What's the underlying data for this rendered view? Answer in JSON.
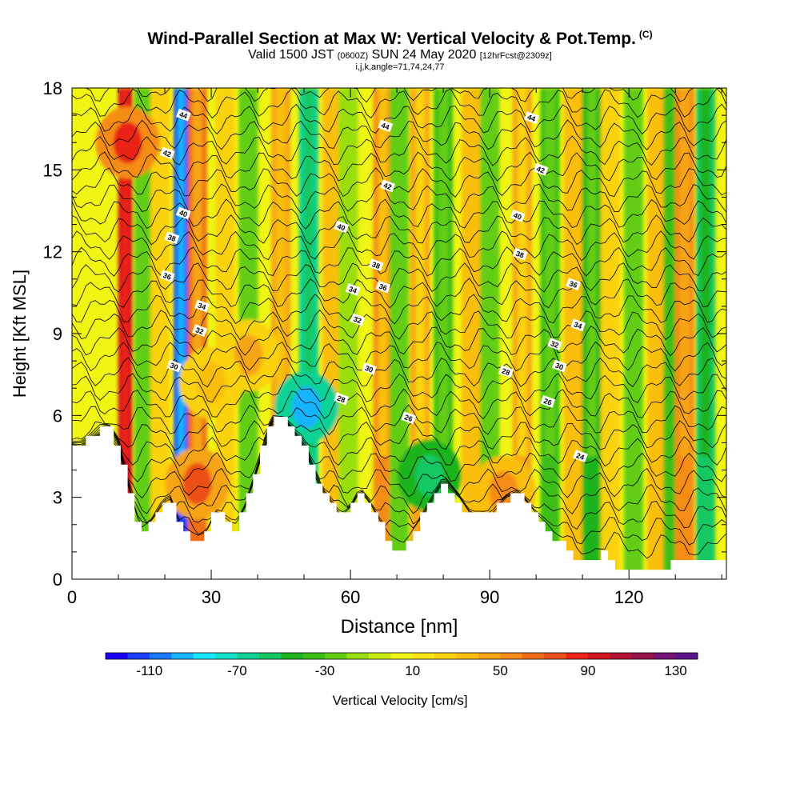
{
  "title": {
    "main": "Wind-Parallel Section at Max W: Vertical Velocity & Pot.Temp.",
    "corner": "(C)",
    "sub_prefix": "Valid 1500 JST",
    "sub_utc": "(0600Z)",
    "sub_date": "SUN 24 May 2020",
    "sub_fcst": "[12hrFcst@2309z]",
    "line3": "i,j,k,angle=71,74,24,77"
  },
  "chart_data": {
    "type": "heatmap",
    "xlabel": "Distance [nm]",
    "ylabel": "Height [Kft MSL]",
    "xlim": [
      0,
      141
    ],
    "ylim": [
      0,
      18
    ],
    "x_ticks": [
      0,
      30,
      60,
      90,
      120
    ],
    "y_ticks": [
      0,
      3,
      6,
      9,
      12,
      15,
      18
    ],
    "colorbar": {
      "label": "Vertical Velocity [cm/s]",
      "tick_labels": [
        "-110",
        "-70",
        "-30",
        "10",
        "50",
        "90",
        "130"
      ],
      "levels_start": -130,
      "level_step": 10,
      "colors": [
        "#1a00ff",
        "#1940ff",
        "#1a78ff",
        "#17b4ff",
        "#18e8ff",
        "#12e0c8",
        "#10d296",
        "#15c864",
        "#1eb41e",
        "#3cbe14",
        "#64cd14",
        "#9ade10",
        "#c8eb10",
        "#f0f514",
        "#fae614",
        "#fad20f",
        "#fabe0f",
        "#f5a514",
        "#f58c19",
        "#f06e19",
        "#eb5019",
        "#eb2319",
        "#d21423",
        "#b41432",
        "#96144b",
        "#781478",
        "#5a148c"
      ]
    },
    "w_columns": [
      {
        "x": 11.5,
        "w": 95
      },
      {
        "x": 15.5,
        "w": -30
      },
      {
        "x": 19,
        "w": 20
      },
      {
        "x": 23.5,
        "w": -115
      },
      {
        "x": 27,
        "w": 60
      },
      {
        "x": 33,
        "w": 20
      },
      {
        "x": 38,
        "w": -25
      },
      {
        "x": 45,
        "w": 45
      },
      {
        "x": 51,
        "w": -70
      },
      {
        "x": 56,
        "w": 30
      },
      {
        "x": 59.5,
        "w": -20
      },
      {
        "x": 67,
        "w": 50
      },
      {
        "x": 70.5,
        "w": -30
      },
      {
        "x": 75,
        "w": 40
      },
      {
        "x": 80,
        "w": -40
      },
      {
        "x": 86,
        "w": 35
      },
      {
        "x": 90,
        "w": -25
      },
      {
        "x": 97,
        "w": 40
      },
      {
        "x": 103,
        "w": -40
      },
      {
        "x": 108,
        "w": 30
      },
      {
        "x": 112,
        "w": -45
      },
      {
        "x": 116,
        "w": 25
      },
      {
        "x": 121,
        "w": -30
      },
      {
        "x": 126,
        "w": 30
      },
      {
        "x": 129.5,
        "w": -35
      },
      {
        "x": 132,
        "w": 55
      },
      {
        "x": 136.5,
        "w": -60
      }
    ],
    "w_blobs": [
      {
        "x": 38,
        "y": 8.2,
        "w": 42
      },
      {
        "x": 30,
        "y": 7.2,
        "w": 35
      },
      {
        "x": 27,
        "y": 3.5,
        "w": 70
      },
      {
        "x": 12,
        "y": 16,
        "w": 85
      },
      {
        "x": 50.5,
        "y": 6.3,
        "w": -95
      },
      {
        "x": 77,
        "y": 3.8,
        "w": -60
      },
      {
        "x": 93,
        "y": 3.2,
        "w": 55
      }
    ],
    "terrain": [
      [
        0,
        4.9
      ],
      [
        2,
        4.9
      ],
      [
        4,
        5.2
      ],
      [
        6,
        5.5
      ],
      [
        8,
        5.5
      ],
      [
        10,
        5.0
      ],
      [
        12,
        3.5
      ],
      [
        14,
        2.2
      ],
      [
        15,
        1.7
      ],
      [
        17,
        2.0
      ],
      [
        19,
        2.6
      ],
      [
        21,
        3.0
      ],
      [
        23,
        2.0
      ],
      [
        25,
        1.6
      ],
      [
        27,
        1.4
      ],
      [
        29,
        1.6
      ],
      [
        31,
        2.4
      ],
      [
        33,
        2.2
      ],
      [
        35,
        1.8
      ],
      [
        37,
        2.4
      ],
      [
        39,
        3.5
      ],
      [
        41,
        4.7
      ],
      [
        43,
        5.8
      ],
      [
        46,
        5.8
      ],
      [
        48,
        5.4
      ],
      [
        50,
        5.0
      ],
      [
        52,
        4.0
      ],
      [
        54,
        3.2
      ],
      [
        56,
        2.8
      ],
      [
        58,
        2.2
      ],
      [
        60,
        2.5
      ],
      [
        62,
        3.2
      ],
      [
        64,
        2.8
      ],
      [
        66,
        2.2
      ],
      [
        68,
        1.6
      ],
      [
        70,
        0.9
      ],
      [
        72,
        1.2
      ],
      [
        74,
        1.8
      ],
      [
        76,
        2.4
      ],
      [
        78,
        3.0
      ],
      [
        80,
        3.6
      ],
      [
        82,
        3.2
      ],
      [
        84,
        2.8
      ],
      [
        86,
        2.3
      ],
      [
        90,
        2.3
      ],
      [
        92,
        2.6
      ],
      [
        94,
        3.0
      ],
      [
        96,
        3.1
      ],
      [
        98,
        2.8
      ],
      [
        100,
        2.4
      ],
      [
        102,
        2.0
      ],
      [
        104,
        1.5
      ],
      [
        106,
        1.3
      ],
      [
        108,
        0.9
      ],
      [
        110,
        0.7
      ],
      [
        112,
        0.8
      ],
      [
        114,
        0.9
      ],
      [
        116,
        0.9
      ],
      [
        118,
        0.4
      ],
      [
        120,
        0.4
      ],
      [
        122,
        0.5
      ],
      [
        124,
        0.4
      ],
      [
        126,
        0.4
      ],
      [
        128,
        0.4
      ],
      [
        130,
        0.6
      ],
      [
        132,
        0.7
      ],
      [
        136,
        0.7
      ],
      [
        141,
        0.7
      ]
    ],
    "theta_contours": [
      {
        "value": 24,
        "label_at": [
          110,
          4.5
        ]
      },
      {
        "value": 26,
        "label_at": [
          104.5,
          6.4
        ]
      },
      {
        "value": 28,
        "label_at": [
          59,
          6.6
        ]
      },
      {
        "value": 30,
        "label_at": [
          22,
          7.8
        ]
      },
      {
        "value": 32,
        "label_at": [
          27.5,
          9.1
        ]
      },
      {
        "value": 34,
        "label_at": [
          28,
          10.0
        ]
      },
      {
        "value": 36,
        "label_at": [
          20.5,
          11.1
        ]
      },
      {
        "value": 38,
        "label_at": [
          21.5,
          12.5
        ]
      },
      {
        "value": 40,
        "label_at": [
          24,
          13.4
        ]
      },
      {
        "value": 42,
        "label_at": [
          20.5,
          15.6
        ]
      },
      {
        "value": 44,
        "label_at": [
          24,
          17.0
        ]
      }
    ],
    "contour_labels": [
      {
        "text": "44",
        "x": 24,
        "y": 17.0
      },
      {
        "text": "42",
        "x": 20.5,
        "y": 15.6
      },
      {
        "text": "40",
        "x": 24,
        "y": 13.4
      },
      {
        "text": "38",
        "x": 21.5,
        "y": 12.5
      },
      {
        "text": "36",
        "x": 20.5,
        "y": 11.1
      },
      {
        "text": "34",
        "x": 28,
        "y": 10.0
      },
      {
        "text": "32",
        "x": 27.5,
        "y": 9.1
      },
      {
        "text": "30",
        "x": 22,
        "y": 7.8
      },
      {
        "text": "44",
        "x": 67.5,
        "y": 16.6
      },
      {
        "text": "42",
        "x": 68,
        "y": 14.4
      },
      {
        "text": "40",
        "x": 58,
        "y": 12.9
      },
      {
        "text": "38",
        "x": 65.5,
        "y": 11.5
      },
      {
        "text": "36",
        "x": 67,
        "y": 10.7
      },
      {
        "text": "34",
        "x": 60.5,
        "y": 10.6
      },
      {
        "text": "32",
        "x": 61.5,
        "y": 9.5
      },
      {
        "text": "30",
        "x": 64,
        "y": 7.7
      },
      {
        "text": "28",
        "x": 58,
        "y": 6.6
      },
      {
        "text": "26",
        "x": 72.5,
        "y": 5.9
      },
      {
        "text": "44",
        "x": 99,
        "y": 16.9
      },
      {
        "text": "42",
        "x": 101,
        "y": 15.0
      },
      {
        "text": "40",
        "x": 96,
        "y": 13.3
      },
      {
        "text": "38",
        "x": 96.5,
        "y": 11.9
      },
      {
        "text": "36",
        "x": 108,
        "y": 10.8
      },
      {
        "text": "34",
        "x": 109,
        "y": 9.3
      },
      {
        "text": "32",
        "x": 104,
        "y": 8.6
      },
      {
        "text": "30",
        "x": 105,
        "y": 7.8
      },
      {
        "text": "28",
        "x": 93.5,
        "y": 7.6
      },
      {
        "text": "26",
        "x": 102.5,
        "y": 6.5
      },
      {
        "text": "24",
        "x": 109.5,
        "y": 4.5
      }
    ]
  }
}
